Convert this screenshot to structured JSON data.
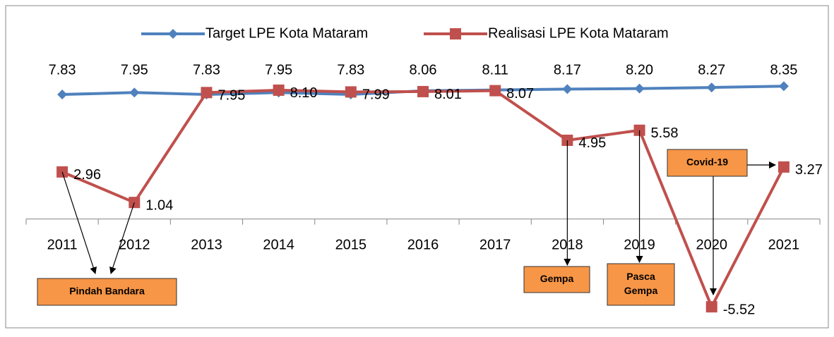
{
  "chart_data": {
    "type": "line",
    "categories": [
      "2011",
      "2012",
      "2013",
      "2014",
      "2015",
      "2016",
      "2017",
      "2018",
      "2019",
      "2020",
      "2021"
    ],
    "series": [
      {
        "name": "Target LPE Kota Mataram",
        "color": "#4f81bd",
        "marker": "diamond",
        "values": [
          7.83,
          7.95,
          7.83,
          7.95,
          7.83,
          8.06,
          8.11,
          8.17,
          8.2,
          8.27,
          8.35
        ],
        "value_labels": [
          "7.83",
          "7.95",
          "7.83",
          "7.95",
          "7.83",
          "8.06",
          "8.11",
          "8.17",
          "8.20",
          "8.27",
          "8.35"
        ]
      },
      {
        "name": "Realisasi LPE Kota Mataram",
        "color": "#c0504d",
        "marker": "square",
        "values": [
          2.96,
          1.04,
          7.95,
          8.1,
          7.99,
          8.01,
          8.07,
          4.95,
          5.58,
          -5.52,
          3.27
        ],
        "value_labels": [
          "2.96",
          "1.04",
          "7.95",
          "8.10",
          "7.99",
          "8.01",
          "8.07",
          "4.95",
          "5.58",
          "-5.52",
          "3.27"
        ]
      }
    ],
    "ylim": [
      -6,
      9
    ],
    "legend": "top",
    "annotations": [
      {
        "text": [
          "Pindah Bandara"
        ]
      },
      {
        "text": [
          "Gempa"
        ]
      },
      {
        "text": [
          "Pasca",
          "Gempa"
        ]
      },
      {
        "text": [
          "Covid-19"
        ]
      }
    ]
  }
}
